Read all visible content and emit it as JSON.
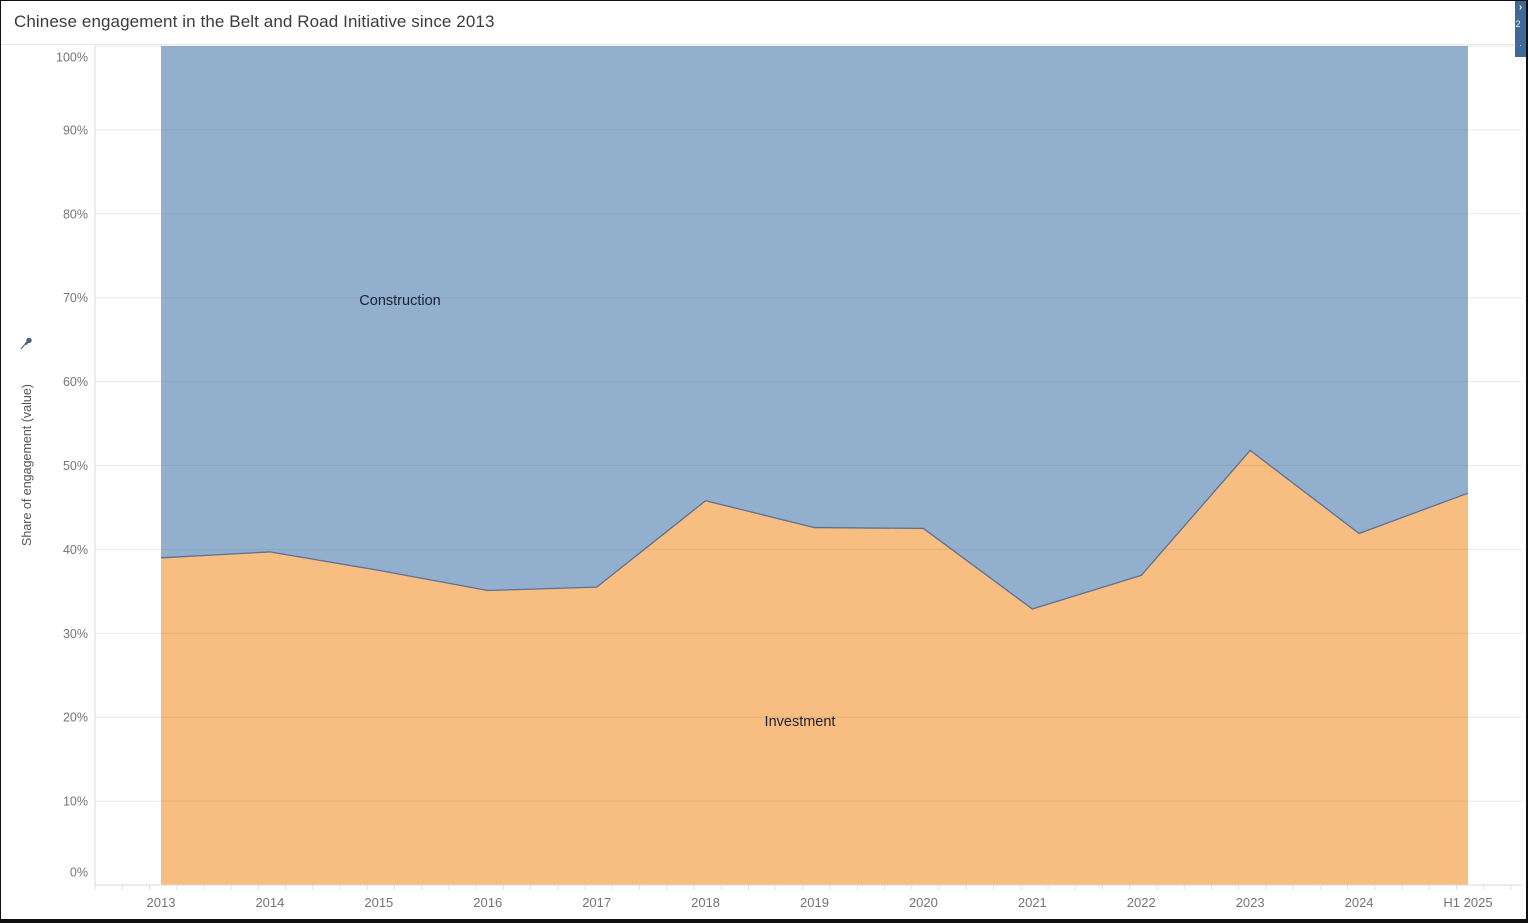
{
  "window": {
    "title": "Chinese engagement in the Belt and Road Initiative since 2013"
  },
  "right_panel": {
    "chevron": "›",
    "clipped_glyph": "2",
    "clipped_dot": "."
  },
  "y_axis": {
    "title": "Share of engagement (value)",
    "tick_suffix": "%"
  },
  "labels": {
    "construction": "Construction",
    "investment": "Investment"
  },
  "colors": {
    "construction_area": "#92afce",
    "investment_area": "#f8bd80",
    "boundary_line": "#5d7094",
    "gridline": "rgba(110,110,110,0.15)",
    "axis_line": "#d9d9d9",
    "minor_tick": "#e0e0e0",
    "tick_text": "#757575",
    "title_text": "#3c3c3c",
    "panel_strip": "#3d6a96",
    "pin_icon": "#4a617c"
  },
  "chart_data": {
    "type": "area",
    "stacked": "percent",
    "title": "Chinese engagement in the Belt and Road Initiative since 2013",
    "ylabel": "Share of engagement (value)",
    "ylim": [
      0,
      100
    ],
    "y_ticks": [
      0,
      10,
      20,
      30,
      40,
      50,
      60,
      70,
      80,
      90,
      100
    ],
    "grid": "horizontal",
    "legend": "inline-labels",
    "x": [
      "2013",
      "2014",
      "2015",
      "2016",
      "2017",
      "2018",
      "2019",
      "2020",
      "2021",
      "2022",
      "2023",
      "2024",
      "H1 2025"
    ],
    "series": [
      {
        "name": "Investment",
        "color": "#f8bd80",
        "values": [
          39.0,
          39.7,
          37.5,
          35.1,
          35.5,
          45.8,
          42.6,
          42.5,
          32.9,
          36.9,
          51.8,
          41.9,
          46.7
        ]
      },
      {
        "name": "Construction",
        "color": "#92afce",
        "values": [
          61.0,
          60.3,
          62.5,
          64.9,
          64.5,
          54.2,
          57.4,
          57.5,
          67.1,
          63.1,
          48.2,
          58.1,
          53.3
        ]
      }
    ]
  }
}
